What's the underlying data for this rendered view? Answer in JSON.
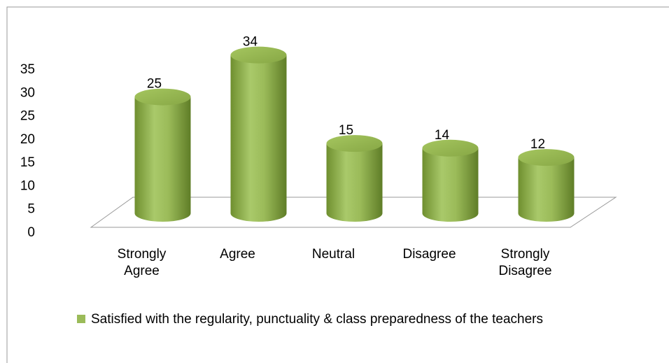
{
  "chart_data": {
    "type": "bar",
    "style": "3d-cylinder",
    "categories": [
      "Strongly Agree",
      "Agree",
      "Neutral",
      "Disagree",
      "Strongly Disagree"
    ],
    "series": [
      {
        "name": "Satisfied with the regularity, punctuality & class preparedness of the teachers",
        "color": "#9bbb59",
        "values": [
          25,
          34,
          15,
          14,
          12
        ]
      }
    ],
    "ylim": [
      0,
      35
    ],
    "yticks": [
      0,
      5,
      10,
      15,
      20,
      25,
      30,
      35
    ],
    "grid": false,
    "legend": "bottom"
  }
}
